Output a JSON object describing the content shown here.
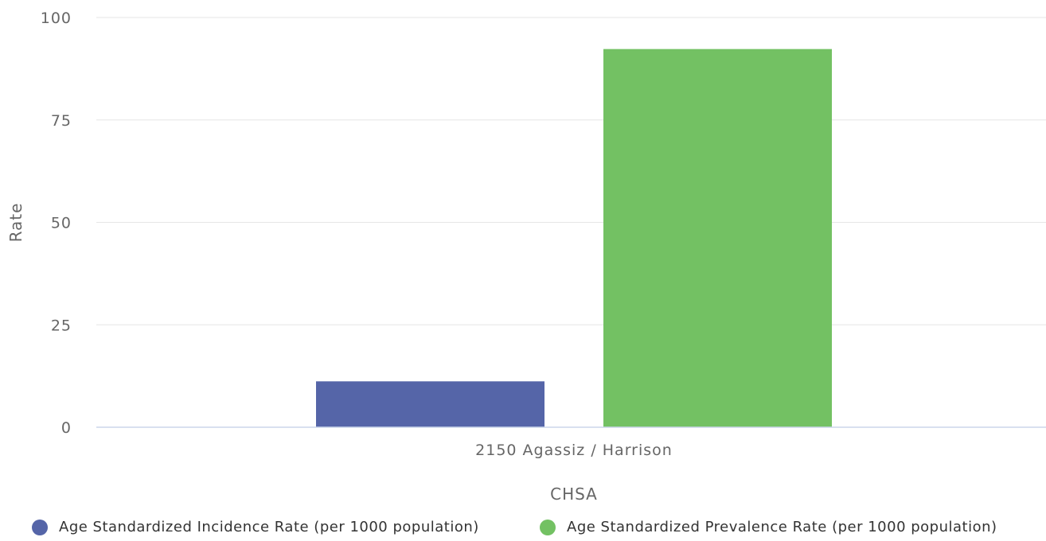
{
  "chart_data": {
    "type": "bar",
    "categories": [
      "2150 Agassiz / Harrison"
    ],
    "series": [
      {
        "name": "Age Standardized Incidence Rate (per 1000 population)",
        "values": [
          11.2
        ],
        "color": "#5565a8"
      },
      {
        "name": "Age Standardized Prevalence Rate (per 1000 population)",
        "values": [
          92.3
        ],
        "color": "#73c163"
      }
    ],
    "xlabel": "CHSA",
    "ylabel": "Rate",
    "ylim": [
      0,
      100
    ],
    "yticks": [
      0,
      25,
      50,
      75,
      100
    ],
    "grid": true,
    "legend_position": "bottom"
  }
}
